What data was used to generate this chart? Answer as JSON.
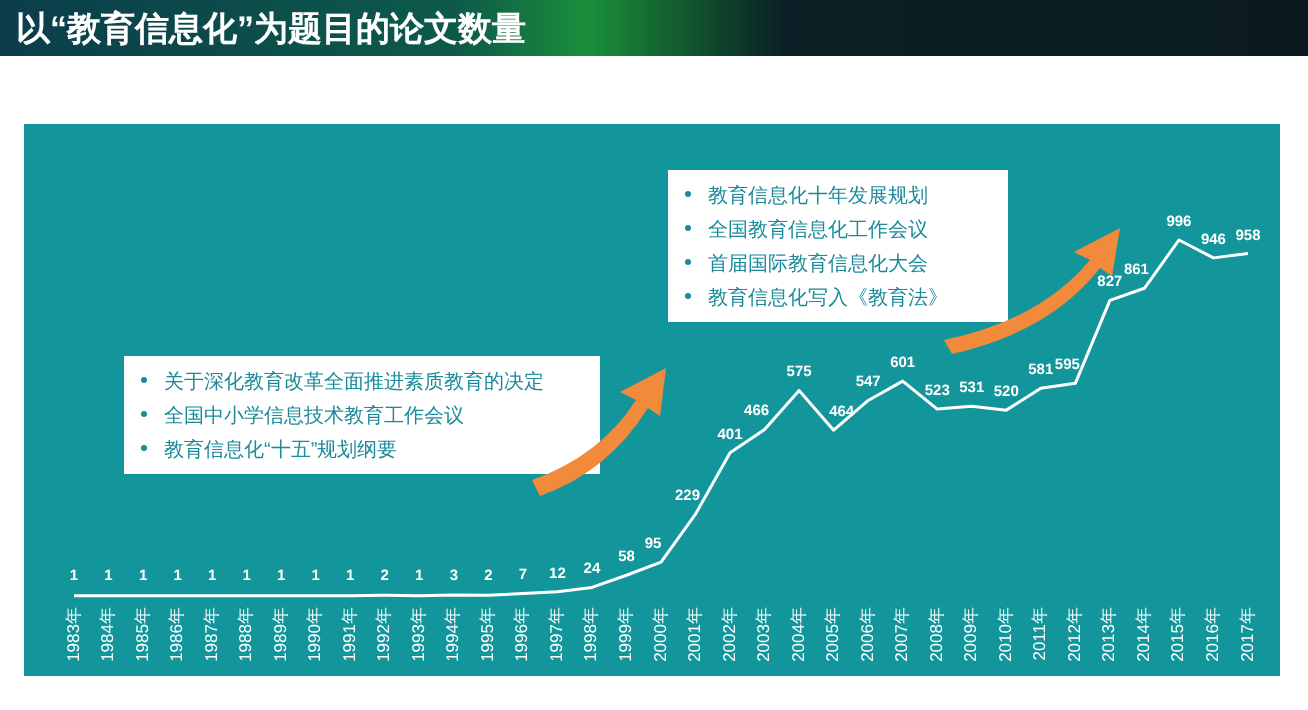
{
  "chart_data": {
    "type": "line",
    "title": "以“教育信息化”为题目的论文数量",
    "categories": [
      "1983年",
      "1984年",
      "1985年",
      "1986年",
      "1987年",
      "1988年",
      "1989年",
      "1990年",
      "1991年",
      "1992年",
      "1993年",
      "1994年",
      "1995年",
      "1996年",
      "1997年",
      "1998年",
      "1999年",
      "2000年",
      "2001年",
      "2002年",
      "2003年",
      "2004年",
      "2005年",
      "2006年",
      "2007年",
      "2008年",
      "2009年",
      "2010年",
      "2011年",
      "2012年",
      "2013年",
      "2014年",
      "2015年",
      "2016年",
      "2017年"
    ],
    "values": [
      1,
      1,
      1,
      1,
      1,
      1,
      1,
      1,
      1,
      2,
      1,
      3,
      2,
      7,
      12,
      24,
      58,
      95,
      229,
      401,
      466,
      575,
      464,
      547,
      601,
      523,
      531,
      520,
      581,
      595,
      827,
      861,
      996,
      946,
      958
    ],
    "color": "#ffffff",
    "data_labels": true,
    "marker": "none",
    "annotations": [
      "关于深化教育改革全面推进素质教育的决定",
      "全国中小学信息技术教育工作会议",
      "教育信息化“十五”规划纲要",
      "教育信息化十年发展规划",
      "全国教育信息化工作会议",
      "首届国际教育信息化大会",
      "教育信息化写入《教育法》"
    ]
  }
}
